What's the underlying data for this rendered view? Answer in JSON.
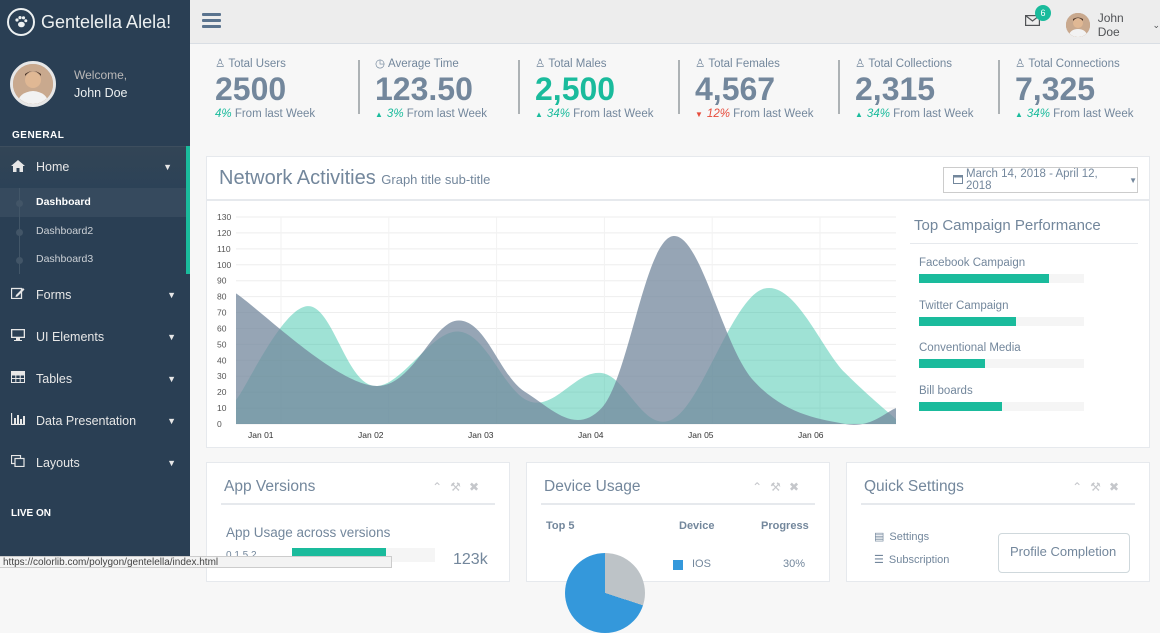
{
  "brand": {
    "name": "Gentelella Alela!"
  },
  "profile": {
    "welcome": "Welcome,",
    "name": "John Doe"
  },
  "sidebar": {
    "section_general": "GENERAL",
    "items": [
      {
        "label": "Home",
        "icon": "home-icon"
      },
      {
        "label": "Forms",
        "icon": "edit-icon"
      },
      {
        "label": "UI Elements",
        "icon": "desktop-icon"
      },
      {
        "label": "Tables",
        "icon": "table-icon"
      },
      {
        "label": "Data Presentation",
        "icon": "bar-chart-icon"
      },
      {
        "label": "Layouts",
        "icon": "clone-icon"
      }
    ],
    "home_sub": [
      "Dashboard",
      "Dashboard2",
      "Dashboard3"
    ],
    "section_live": "LIVE ON"
  },
  "topnav": {
    "user": "John Doe",
    "mail_count": "6"
  },
  "tiles": [
    {
      "title": "Total Users",
      "icon": "user-icon",
      "value": "2500",
      "delta": "4%",
      "suffix": "From last Week",
      "trend": "none"
    },
    {
      "title": "Average Time",
      "icon": "clock-icon",
      "value": "123.50",
      "delta": "3%",
      "suffix": "From last Week",
      "trend": "up"
    },
    {
      "title": "Total Males",
      "icon": "user-icon",
      "value": "2,500",
      "delta": "34%",
      "suffix": "From last Week",
      "trend": "up"
    },
    {
      "title": "Total Females",
      "icon": "user-icon",
      "value": "4,567",
      "delta": "12%",
      "suffix": "From last Week",
      "trend": "down"
    },
    {
      "title": "Total Collections",
      "icon": "user-icon",
      "value": "2,315",
      "delta": "34%",
      "suffix": "From last Week",
      "trend": "up"
    },
    {
      "title": "Total Connections",
      "icon": "user-icon",
      "value": "7,325",
      "delta": "34%",
      "suffix": "From last Week",
      "trend": "up"
    }
  ],
  "network": {
    "title": "Network Activities",
    "subtitle": "Graph title sub-title",
    "daterange": "March 14, 2018 - April 12, 2018"
  },
  "chart_data": {
    "type": "area",
    "x": [
      "Jan 01",
      "Jan 02",
      "Jan 03",
      "Jan 04",
      "Jan 05",
      "Jan 06"
    ],
    "ylim": [
      0,
      130
    ],
    "yticks": [
      0,
      10,
      20,
      30,
      40,
      50,
      60,
      70,
      80,
      90,
      100,
      110,
      120,
      130
    ],
    "series": [
      {
        "color": "#1abb9c",
        "points": [
          [
            0,
            15
          ],
          [
            0.7,
            74
          ],
          [
            1.35,
            24
          ],
          [
            2.2,
            58
          ],
          [
            2.9,
            14
          ],
          [
            3.6,
            32
          ],
          [
            4.3,
            3
          ],
          [
            5.2,
            85
          ],
          [
            6.0,
            32
          ],
          [
            6.5,
            3
          ]
        ]
      },
      {
        "color": "#73879c",
        "points": [
          [
            0,
            82
          ],
          [
            1.35,
            24
          ],
          [
            2.2,
            65
          ],
          [
            2.85,
            20
          ],
          [
            3.6,
            10
          ],
          [
            4.3,
            118
          ],
          [
            5.1,
            27
          ],
          [
            6.0,
            0
          ],
          [
            6.5,
            10
          ]
        ]
      }
    ]
  },
  "campaign": {
    "title": "Top Campaign Performance",
    "items": [
      {
        "label": "Facebook Campaign",
        "value": 0.79
      },
      {
        "label": "Twitter Campaign",
        "value": 0.59
      },
      {
        "label": "Conventional Media",
        "value": 0.4
      },
      {
        "label": "Bill boards",
        "value": 0.5
      }
    ]
  },
  "panels": {
    "app_versions": {
      "title": "App Versions",
      "subtitle": "App Usage across versions",
      "row_label": "0.1.5.2",
      "row_value": "123k"
    },
    "device_usage": {
      "title": "Device Usage",
      "col1": "Top 5",
      "col2": "Device",
      "col3": "Progress",
      "row_device": "IOS",
      "row_value": "30%"
    },
    "quick_settings": {
      "title": "Quick Settings",
      "items": [
        "Settings",
        "Subscription"
      ],
      "button": "Profile Completion"
    }
  },
  "statusbar": "https://colorlib.com/polygon/gentelella/index.html"
}
